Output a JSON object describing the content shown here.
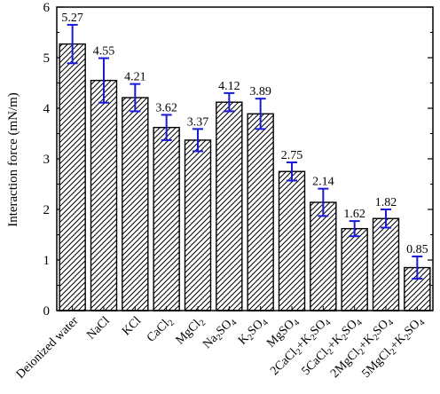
{
  "chart_data": {
    "type": "bar",
    "title": "",
    "xlabel": "",
    "ylabel": "Interaction force (mN/m)",
    "ylim": [
      0,
      6
    ],
    "yticks": [
      "0",
      "1",
      "2",
      "3",
      "4",
      "5",
      "6"
    ],
    "grid": false,
    "legend": "none",
    "bar_fill": "hatched diagonal",
    "error_bar_color": "#1a1ad6",
    "categories": [
      {
        "parts": [
          {
            "t": "Deionized water"
          }
        ]
      },
      {
        "parts": [
          {
            "t": "NaCl"
          }
        ]
      },
      {
        "parts": [
          {
            "t": "KCl"
          }
        ]
      },
      {
        "parts": [
          {
            "t": "CaCl"
          },
          {
            "t": "2",
            "sub": true
          }
        ]
      },
      {
        "parts": [
          {
            "t": "MgCl"
          },
          {
            "t": "2",
            "sub": true
          }
        ]
      },
      {
        "parts": [
          {
            "t": "Na"
          },
          {
            "t": "2",
            "sub": true
          },
          {
            "t": "SO"
          },
          {
            "t": "4",
            "sub": true
          }
        ]
      },
      {
        "parts": [
          {
            "t": "K"
          },
          {
            "t": "2",
            "sub": true
          },
          {
            "t": "SO"
          },
          {
            "t": "4",
            "sub": true
          }
        ]
      },
      {
        "parts": [
          {
            "t": "MgSO"
          },
          {
            "t": "4",
            "sub": true
          }
        ]
      },
      {
        "parts": [
          {
            "t": "2CaCl"
          },
          {
            "t": "2",
            "sub": true
          },
          {
            "t": "+K"
          },
          {
            "t": "2",
            "sub": true
          },
          {
            "t": "SO"
          },
          {
            "t": "4",
            "sub": true
          }
        ]
      },
      {
        "parts": [
          {
            "t": "5CaCl"
          },
          {
            "t": "2",
            "sub": true
          },
          {
            "t": "+K"
          },
          {
            "t": "2",
            "sub": true
          },
          {
            "t": "SO"
          },
          {
            "t": "4",
            "sub": true
          }
        ]
      },
      {
        "parts": [
          {
            "t": "2MgCl"
          },
          {
            "t": "2",
            "sub": true
          },
          {
            "t": "+K"
          },
          {
            "t": "2",
            "sub": true
          },
          {
            "t": "SO"
          },
          {
            "t": "4",
            "sub": true
          }
        ]
      },
      {
        "parts": [
          {
            "t": "5MgCl"
          },
          {
            "t": "2",
            "sub": true
          },
          {
            "t": "+K"
          },
          {
            "t": "2",
            "sub": true
          },
          {
            "t": "SO"
          },
          {
            "t": "4",
            "sub": true
          }
        ]
      }
    ],
    "values": [
      5.27,
      4.55,
      4.21,
      3.62,
      3.37,
      4.12,
      3.89,
      2.75,
      2.14,
      1.62,
      1.82,
      0.85
    ],
    "value_labels": [
      "5.27",
      "4.55",
      "4.21",
      "3.62",
      "3.37",
      "4.12",
      "3.89",
      "2.75",
      "2.14",
      "1.62",
      "1.82",
      "0.85"
    ],
    "errors": [
      0.38,
      0.44,
      0.27,
      0.25,
      0.22,
      0.18,
      0.3,
      0.18,
      0.27,
      0.15,
      0.18,
      0.22
    ]
  }
}
